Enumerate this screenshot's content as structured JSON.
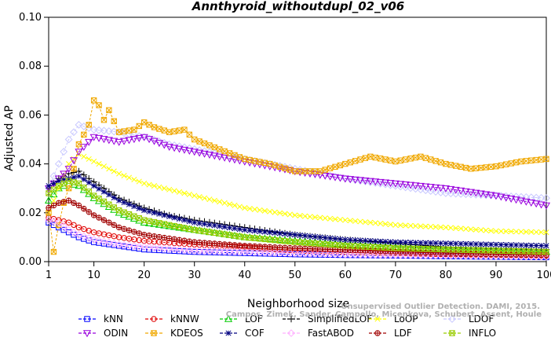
{
  "chart_data": {
    "type": "line",
    "title": "Annthyroid_withoutdupl_02_v06",
    "xlabel": "Neighborhood size",
    "ylabel": "Adjusted AP",
    "xlim": [
      1,
      100
    ],
    "ylim": [
      0,
      0.1
    ],
    "x_ticks": [
      1,
      10,
      20,
      30,
      40,
      50,
      60,
      70,
      80,
      90,
      100
    ],
    "y_ticks": [
      "0.00",
      "0.02",
      "0.04",
      "0.06",
      "0.08",
      "0.10"
    ],
    "grid": false,
    "legend_position": "bottom",
    "watermark_lines": [
      "Unsupervised Outlier Detection. DAMI, 2015.",
      "Campos, Zimek, Sander, Campello, Micenkova, Schubert, Assent, Houle"
    ],
    "series": [
      {
        "name": "kNN",
        "color": "#0000ff",
        "marker": "square",
        "x": [
          1,
          3,
          5,
          7,
          10,
          15,
          20,
          30,
          40,
          50,
          60,
          70,
          80,
          90,
          100
        ],
        "values": [
          0.016,
          0.014,
          0.012,
          0.01,
          0.008,
          0.0065,
          0.005,
          0.004,
          0.0035,
          0.003,
          0.0027,
          0.0025,
          0.0022,
          0.002,
          0.0018
        ]
      },
      {
        "name": "kNNW",
        "color": "#e00000",
        "marker": "circle",
        "x": [
          1,
          3,
          5,
          7,
          10,
          15,
          20,
          30,
          40,
          50,
          60,
          70,
          80,
          90,
          100
        ],
        "values": [
          0.018,
          0.017,
          0.016,
          0.014,
          0.012,
          0.01,
          0.0085,
          0.007,
          0.006,
          0.0045,
          0.004,
          0.0035,
          0.003,
          0.0028,
          0.0025
        ]
      },
      {
        "name": "LOF",
        "color": "#00cc00",
        "marker": "triangle",
        "x": [
          1,
          3,
          5,
          7,
          10,
          15,
          20,
          30,
          40,
          50,
          60,
          70,
          80,
          90,
          100
        ],
        "values": [
          0.025,
          0.03,
          0.032,
          0.031,
          0.026,
          0.02,
          0.016,
          0.013,
          0.01,
          0.0085,
          0.007,
          0.006,
          0.005,
          0.0045,
          0.004
        ]
      },
      {
        "name": "SimplifiedLOF",
        "color": "#000000",
        "marker": "plus",
        "x": [
          1,
          3,
          5,
          7,
          9,
          12,
          15,
          20,
          25,
          30,
          40,
          50,
          60,
          70,
          80,
          90,
          100
        ],
        "values": [
          0.03,
          0.034,
          0.036,
          0.037,
          0.034,
          0.03,
          0.026,
          0.022,
          0.019,
          0.017,
          0.014,
          0.011,
          0.009,
          0.0075,
          0.006,
          0.0055,
          0.005
        ]
      },
      {
        "name": "LoOP",
        "color": "#ffff00",
        "marker": "cross",
        "x": [
          1,
          3,
          5,
          7,
          10,
          15,
          20,
          30,
          40,
          50,
          60,
          70,
          80,
          90,
          100
        ],
        "values": [
          0.02,
          0.03,
          0.04,
          0.044,
          0.041,
          0.036,
          0.032,
          0.027,
          0.022,
          0.019,
          0.017,
          0.015,
          0.014,
          0.0125,
          0.012
        ]
      },
      {
        "name": "LDOF",
        "color": "#c8c8ff",
        "marker": "diamond",
        "x": [
          1,
          3,
          5,
          7,
          10,
          15,
          20,
          25,
          30,
          40,
          50,
          60,
          70,
          80,
          90,
          100
        ],
        "values": [
          0.03,
          0.04,
          0.05,
          0.056,
          0.054,
          0.053,
          0.051,
          0.048,
          0.046,
          0.042,
          0.038,
          0.034,
          0.031,
          0.028,
          0.027,
          0.026
        ]
      },
      {
        "name": "ODIN",
        "color": "#9900dd",
        "marker": "triangle-down",
        "x": [
          1,
          3,
          5,
          7,
          10,
          15,
          20,
          25,
          30,
          40,
          50,
          60,
          70,
          80,
          90,
          100
        ],
        "values": [
          0.03,
          0.034,
          0.038,
          0.045,
          0.051,
          0.049,
          0.051,
          0.047,
          0.045,
          0.041,
          0.037,
          0.034,
          0.032,
          0.03,
          0.027,
          0.023
        ]
      },
      {
        "name": "KDEOS",
        "color": "#f0a800",
        "marker": "boxed-x",
        "x": [
          1,
          2,
          3,
          4,
          5,
          6,
          7,
          8,
          9,
          10,
          11,
          12,
          13,
          15,
          18,
          20,
          22,
          25,
          28,
          30,
          35,
          40,
          45,
          50,
          55,
          60,
          65,
          70,
          75,
          80,
          85,
          90,
          95,
          100
        ],
        "values": [
          0.02,
          0.004,
          0.015,
          0.024,
          0.03,
          0.038,
          0.048,
          0.052,
          0.056,
          0.066,
          0.064,
          0.058,
          0.062,
          0.053,
          0.054,
          0.057,
          0.055,
          0.053,
          0.054,
          0.05,
          0.046,
          0.042,
          0.04,
          0.037,
          0.037,
          0.04,
          0.043,
          0.041,
          0.043,
          0.04,
          0.038,
          0.039,
          0.041,
          0.042
        ]
      },
      {
        "name": "COF",
        "color": "#000080",
        "marker": "asterisk",
        "x": [
          1,
          3,
          5,
          7,
          10,
          15,
          20,
          30,
          40,
          50,
          60,
          70,
          80,
          90,
          100
        ],
        "values": [
          0.031,
          0.033,
          0.034,
          0.035,
          0.031,
          0.025,
          0.021,
          0.016,
          0.013,
          0.011,
          0.009,
          0.008,
          0.0075,
          0.007,
          0.0065
        ]
      },
      {
        "name": "FastABOD",
        "color": "#ffb0ff",
        "marker": "diamond",
        "x": [
          1,
          3,
          5,
          7,
          10,
          15,
          20,
          30,
          40,
          50,
          60,
          70,
          80,
          90,
          100
        ],
        "values": [
          0.017,
          0.016,
          0.013,
          0.011,
          0.009,
          0.007,
          0.006,
          0.0045,
          0.004,
          0.0035,
          0.003,
          0.0027,
          0.0025,
          0.0022,
          0.002
        ]
      },
      {
        "name": "LDF",
        "color": "#a00000",
        "marker": "circle-plus",
        "x": [
          1,
          3,
          5,
          7,
          10,
          15,
          20,
          30,
          40,
          50,
          60,
          70,
          80,
          90,
          100
        ],
        "values": [
          0.022,
          0.024,
          0.025,
          0.023,
          0.019,
          0.014,
          0.011,
          0.008,
          0.0065,
          0.0055,
          0.0048,
          0.004,
          0.0035,
          0.003,
          0.0028
        ]
      },
      {
        "name": "INFLO",
        "color": "#99cc00",
        "marker": "boxed-x",
        "x": [
          1,
          3,
          5,
          7,
          10,
          15,
          20,
          30,
          40,
          50,
          60,
          70,
          80,
          90,
          100
        ],
        "values": [
          0.028,
          0.031,
          0.033,
          0.032,
          0.027,
          0.021,
          0.017,
          0.013,
          0.01,
          0.008,
          0.0065,
          0.0055,
          0.005,
          0.0045,
          0.004
        ]
      }
    ],
    "legend_order": [
      "kNN",
      "kNNW",
      "LOF",
      "SimplifiedLOF",
      "LoOP",
      "LDOF",
      "ODIN",
      "KDEOS",
      "COF",
      "FastABOD",
      "LDF",
      "INFLO"
    ]
  }
}
